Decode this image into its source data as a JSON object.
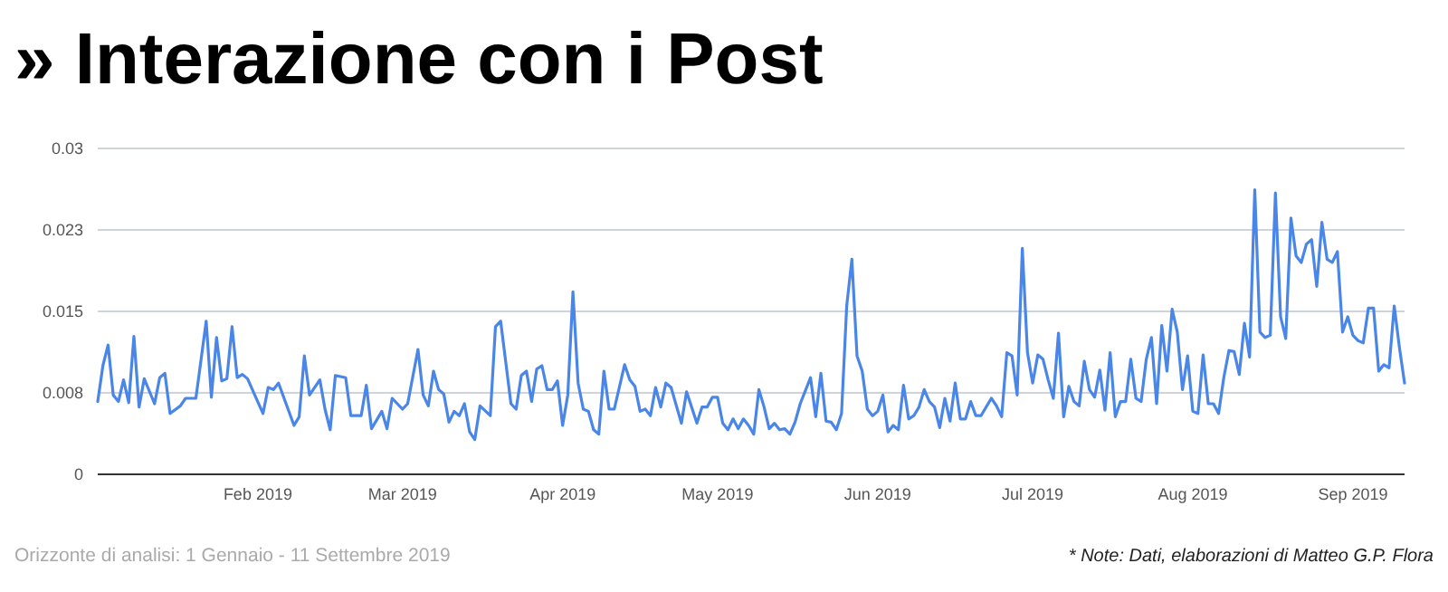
{
  "chart_data": {
    "type": "line",
    "title": "» Interazione con i Post",
    "annotations": [
      "Orizzonte di analisi: 1 Gennaio - 11 Settembre 2019",
      "* Note: Dati, elaborazioni di Matteo G.P. Flora"
    ],
    "x": [
      "2019-01-01",
      "2019-01-02",
      "2019-01-03",
      "2019-01-04",
      "2019-01-05",
      "2019-01-06",
      "2019-01-07",
      "2019-01-08",
      "2019-01-09",
      "2019-01-10",
      "2019-01-12",
      "2019-01-13",
      "2019-01-14",
      "2019-01-15",
      "2019-01-17",
      "2019-01-18",
      "2019-01-20",
      "2019-01-22",
      "2019-01-23",
      "2019-01-24",
      "2019-01-25",
      "2019-01-26",
      "2019-01-27",
      "2019-01-28",
      "2019-01-29",
      "2019-01-30",
      "2019-02-02",
      "2019-02-03",
      "2019-02-04",
      "2019-02-05",
      "2019-02-08",
      "2019-02-09",
      "2019-02-10",
      "2019-02-11",
      "2019-02-13",
      "2019-02-14",
      "2019-02-15",
      "2019-02-16",
      "2019-02-18",
      "2019-02-19",
      "2019-02-21",
      "2019-02-22",
      "2019-02-23",
      "2019-02-25",
      "2019-02-26",
      "2019-02-27",
      "2019-03-01",
      "2019-03-02",
      "2019-03-04",
      "2019-03-05",
      "2019-03-06",
      "2019-03-07",
      "2019-03-08",
      "2019-03-09",
      "2019-03-10",
      "2019-03-11",
      "2019-03-12",
      "2019-03-13",
      "2019-03-14",
      "2019-03-15",
      "2019-03-16",
      "2019-03-18",
      "2019-03-19",
      "2019-03-20",
      "2019-03-22",
      "2019-03-23",
      "2019-03-24",
      "2019-03-25",
      "2019-03-26",
      "2019-03-27",
      "2019-03-28",
      "2019-03-29",
      "2019-03-30",
      "2019-03-31",
      "2019-04-01",
      "2019-04-02",
      "2019-04-03",
      "2019-04-04",
      "2019-04-05",
      "2019-04-06",
      "2019-04-07",
      "2019-04-08",
      "2019-04-09",
      "2019-04-10",
      "2019-04-11",
      "2019-04-13",
      "2019-04-14",
      "2019-04-15",
      "2019-04-16",
      "2019-04-17",
      "2019-04-18",
      "2019-04-19",
      "2019-04-20",
      "2019-04-21",
      "2019-04-22",
      "2019-04-24",
      "2019-04-25",
      "2019-04-27",
      "2019-04-28",
      "2019-04-29",
      "2019-04-30",
      "2019-05-01",
      "2019-05-02",
      "2019-05-03",
      "2019-05-04",
      "2019-05-05",
      "2019-05-06",
      "2019-05-07",
      "2019-05-08",
      "2019-05-09",
      "2019-05-10",
      "2019-05-11",
      "2019-05-12",
      "2019-05-13",
      "2019-05-14",
      "2019-05-15",
      "2019-05-16",
      "2019-05-17",
      "2019-05-19",
      "2019-05-20",
      "2019-05-21",
      "2019-05-22",
      "2019-05-23",
      "2019-05-24",
      "2019-05-25",
      "2019-05-26",
      "2019-05-27",
      "2019-05-28",
      "2019-05-29",
      "2019-05-30",
      "2019-05-31",
      "2019-06-01",
      "2019-06-02",
      "2019-06-03",
      "2019-06-04",
      "2019-06-05",
      "2019-06-06",
      "2019-06-07",
      "2019-06-08",
      "2019-06-09",
      "2019-06-10",
      "2019-06-11",
      "2019-06-12",
      "2019-06-13",
      "2019-06-14",
      "2019-06-15",
      "2019-06-16",
      "2019-06-17",
      "2019-06-18",
      "2019-06-19",
      "2019-06-20",
      "2019-06-21",
      "2019-06-23",
      "2019-06-24",
      "2019-06-25",
      "2019-06-26",
      "2019-06-27",
      "2019-06-28",
      "2019-06-29",
      "2019-06-30",
      "2019-07-01",
      "2019-07-02",
      "2019-07-03",
      "2019-07-04",
      "2019-07-05",
      "2019-07-06",
      "2019-07-07",
      "2019-07-08",
      "2019-07-09",
      "2019-07-10",
      "2019-07-11",
      "2019-07-12",
      "2019-07-13",
      "2019-07-14",
      "2019-07-15",
      "2019-07-16",
      "2019-07-17",
      "2019-07-18",
      "2019-07-19",
      "2019-07-20",
      "2019-07-21",
      "2019-07-22",
      "2019-07-23",
      "2019-07-24",
      "2019-07-25",
      "2019-07-26",
      "2019-07-27",
      "2019-07-28",
      "2019-07-29",
      "2019-07-30",
      "2019-07-31",
      "2019-08-01",
      "2019-08-02",
      "2019-08-03",
      "2019-08-04",
      "2019-08-05",
      "2019-08-06",
      "2019-08-07",
      "2019-08-08",
      "2019-08-09",
      "2019-08-10",
      "2019-08-11",
      "2019-08-12",
      "2019-08-13",
      "2019-08-14",
      "2019-08-15",
      "2019-08-16",
      "2019-08-17",
      "2019-08-18",
      "2019-08-19",
      "2019-08-20",
      "2019-08-21",
      "2019-08-22",
      "2019-08-23",
      "2019-08-24",
      "2019-08-25",
      "2019-08-26",
      "2019-08-27",
      "2019-08-28",
      "2019-08-29",
      "2019-08-30",
      "2019-08-31",
      "2019-09-01",
      "2019-09-02",
      "2019-09-03",
      "2019-09-04",
      "2019-09-05",
      "2019-09-06",
      "2019-09-07",
      "2019-09-08",
      "2019-09-09",
      "2019-09-10",
      "2019-09-11"
    ],
    "series": [
      {
        "color": "#4a86e8",
        "values": [
          0.0067,
          0.01,
          0.0119,
          0.0073,
          0.0067,
          0.0087,
          0.0066,
          0.0127,
          0.0062,
          0.0088,
          0.0065,
          0.0089,
          0.0093,
          0.0056,
          0.0063,
          0.007,
          0.007,
          0.0141,
          0.0071,
          0.0126,
          0.0086,
          0.0088,
          0.0136,
          0.0089,
          0.0092,
          0.0088,
          0.0056,
          0.008,
          0.0078,
          0.0084,
          0.0045,
          0.0053,
          0.0109,
          0.0073,
          0.0087,
          0.006,
          0.0041,
          0.0091,
          0.0089,
          0.0054,
          0.0054,
          0.0082,
          0.0042,
          0.0058,
          0.0042,
          0.007,
          0.006,
          0.0065,
          0.0115,
          0.0073,
          0.0063,
          0.0095,
          0.0078,
          0.0074,
          0.0048,
          0.0058,
          0.0054,
          0.0065,
          0.0039,
          0.0032,
          0.0063,
          0.0054,
          0.0136,
          0.0141,
          0.0065,
          0.006,
          0.0091,
          0.0095,
          0.0067,
          0.0097,
          0.01,
          0.0078,
          0.0078,
          0.0086,
          0.0045,
          0.0073,
          0.0168,
          0.0084,
          0.006,
          0.0058,
          0.0041,
          0.0037,
          0.0095,
          0.006,
          0.006,
          0.0101,
          0.0087,
          0.0081,
          0.0058,
          0.006,
          0.0054,
          0.008,
          0.0062,
          0.0084,
          0.008,
          0.0047,
          0.0076,
          0.0047,
          0.0062,
          0.0062,
          0.0071,
          0.0071,
          0.0047,
          0.0041,
          0.0051,
          0.0042,
          0.0051,
          0.0045,
          0.0037,
          0.0078,
          0.0062,
          0.0042,
          0.0047,
          0.0041,
          0.0042,
          0.0037,
          0.0048,
          0.0065,
          0.0089,
          0.0053,
          0.0093,
          0.0049,
          0.0048,
          0.0041,
          0.0056,
          0.0155,
          0.0198,
          0.0109,
          0.0095,
          0.006,
          0.0054,
          0.0058,
          0.0073,
          0.0039,
          0.0045,
          0.0041,
          0.0082,
          0.0051,
          0.0054,
          0.0062,
          0.0078,
          0.0067,
          0.0062,
          0.0043,
          0.007,
          0.0049,
          0.0084,
          0.0051,
          0.0051,
          0.0067,
          0.0054,
          0.0054,
          0.007,
          0.0063,
          0.0053,
          0.0112,
          0.0109,
          0.0073,
          0.0208,
          0.0112,
          0.0084,
          0.011,
          0.0106,
          0.0087,
          0.007,
          0.013,
          0.0053,
          0.0081,
          0.0067,
          0.0063,
          0.0104,
          0.0078,
          0.0071,
          0.0096,
          0.0059,
          0.0112,
          0.0053,
          0.0067,
          0.0067,
          0.0106,
          0.007,
          0.0067,
          0.0106,
          0.0126,
          0.0065,
          0.0137,
          0.0095,
          0.0152,
          0.0131,
          0.0078,
          0.0109,
          0.0058,
          0.0056,
          0.011,
          0.0065,
          0.0065,
          0.0056,
          0.0089,
          0.0114,
          0.0113,
          0.0092,
          0.0139,
          0.0108,
          0.0262,
          0.0131,
          0.0126,
          0.0128,
          0.0259,
          0.0145,
          0.0125,
          0.0236,
          0.0201,
          0.0195,
          0.0212,
          0.0216,
          0.0173,
          0.0232,
          0.0198,
          0.0195,
          0.0205,
          0.0131,
          0.0145,
          0.0128,
          0.0123,
          0.0121,
          0.0153,
          0.0153,
          0.0095,
          0.0101,
          0.0098,
          0.0155,
          0.0117,
          0.0084
        ]
      }
    ],
    "xlim": [
      "2019-01-01",
      "2019-09-11"
    ],
    "xticks": [
      {
        "value": "2019-02-01",
        "label": "Feb 2019"
      },
      {
        "value": "2019-03-01",
        "label": "Mar 2019"
      },
      {
        "value": "2019-04-01",
        "label": "Apr 2019"
      },
      {
        "value": "2019-05-01",
        "label": "May 2019"
      },
      {
        "value": "2019-06-01",
        "label": "Jun 2019"
      },
      {
        "value": "2019-07-01",
        "label": "Jul 2019"
      },
      {
        "value": "2019-08-01",
        "label": "Aug 2019"
      },
      {
        "value": "2019-09-01",
        "label": "Sep 2019"
      }
    ],
    "ylim": [
      0,
      0.03
    ],
    "yticks": [
      0,
      {
        "value": 0.0075,
        "label": "0.008"
      },
      0.015,
      {
        "value": 0.0225,
        "label": "0.023"
      },
      0.03
    ],
    "grid": "y",
    "line_style": "solid"
  }
}
